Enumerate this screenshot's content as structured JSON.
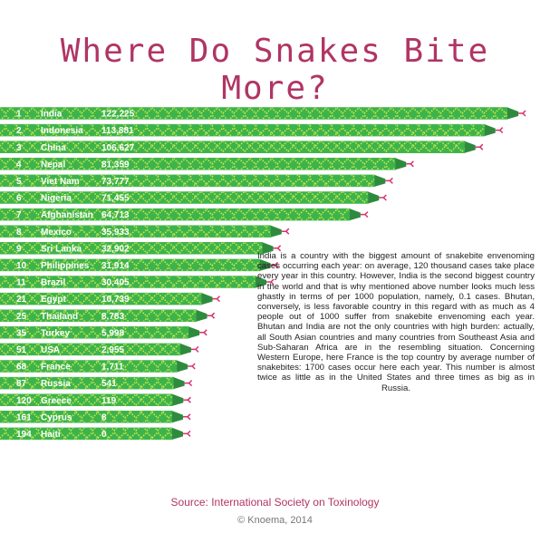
{
  "chart_data": {
    "type": "bar",
    "title": "Where Do Snakes Bite More?",
    "ranks": [
      "1",
      "2",
      "3",
      "4",
      "5",
      "6",
      "7",
      "8",
      "9",
      "10",
      "11",
      "21",
      "25",
      "35",
      "51",
      "68",
      "87",
      "120",
      "161",
      "194"
    ],
    "categories": [
      "India",
      "Indonesia",
      "China",
      "Nepal",
      "Viet Nam",
      "Nigeria",
      "Afghanistan",
      "Mexico",
      "Sri Lanka",
      "Philippines",
      "Brazil",
      "Egypt",
      "Thailand",
      "Turkey",
      "USA",
      "France",
      "Russia",
      "Greece",
      "Cyprus",
      "Haiti"
    ],
    "values": [
      122225,
      113881,
      106627,
      81359,
      73777,
      71455,
      64713,
      35933,
      32902,
      31914,
      30405,
      10739,
      8783,
      5998,
      2955,
      1711,
      541,
      119,
      8,
      0
    ],
    "value_labels": [
      "122,225",
      "113,881",
      "106,627",
      "81,359",
      "73,777",
      "71,455",
      "64,713",
      "35,933",
      "32,902",
      "31,914",
      "30,405",
      "10,739",
      "8,783",
      "5,998",
      "2,955",
      "1,711",
      "541",
      "119",
      "8",
      "0"
    ],
    "color": "#3cb44b",
    "annotation": "India is a country with the biggest amount of snakebite envenoming cases occurring each year: on average, 120 thousand cases take place every year in this country. However, India is the second biggest country in the world and that is why mentioned above number looks much less ghastly in terms of per 1000 population, namely, 0.1 cases. Bhutan, conversely, is less favorable country in this regard with as much as 4 people out of 1000 suffer from snakebite envenoming each year. Bhutan and India are not the only countries with high burden: actually, all South Asian countries and many countries from Southeast Asia and Sub-Saharan Africa are in the resembling situation. Concerning Western Europe, here France is the top country by average number of snakebites: 1700 cases occur here each year. This number is almost twice as little as in the United States and three times as big as in Russia.",
    "source": "Source: International Society on Toxinology",
    "credit": "© Knoema, 2014"
  }
}
